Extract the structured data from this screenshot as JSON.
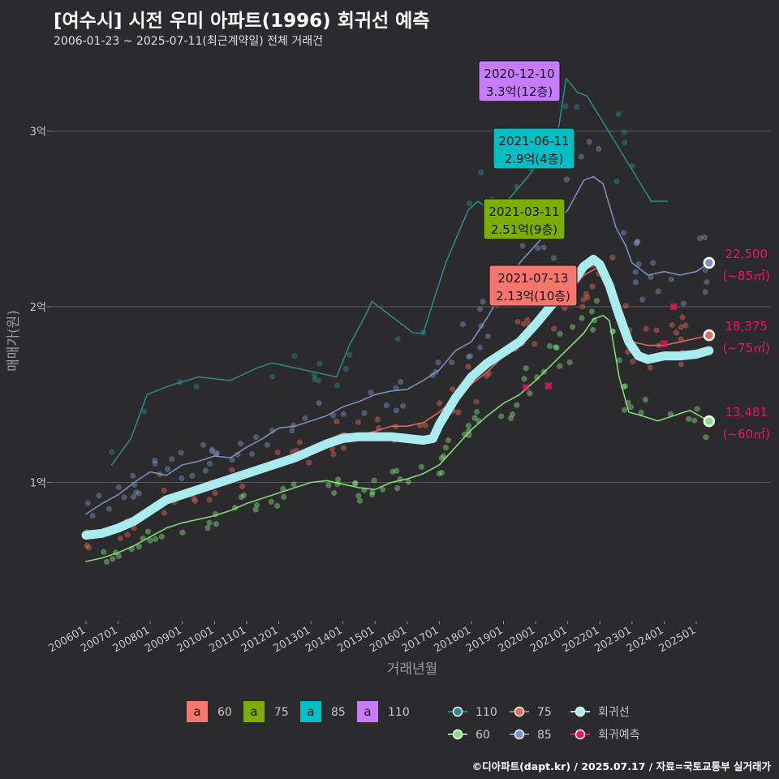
{
  "header": {
    "title": "[여수시] 시전 우미 아파트(1996) 회귀선 예측",
    "subtitle": "2006-01-23 ~ 2025-07-11(최근계약일) 전체 거래건"
  },
  "footer": "©디아파트(dapt.kr) / 2025.07.17 / 자료=국토교통부 실거래가",
  "colors": {
    "background": "#2b2b2d",
    "size_110": "#2a8c8c",
    "size_85": "#7f93c2",
    "size_75": "#e8675f",
    "size_60": "#86e37c",
    "regression": "#a9ecf0",
    "prediction": "#e8185f",
    "label_60": "#f8766d",
    "label_75": "#7cae00",
    "label_85": "#00bfc4",
    "label_110": "#c77cff"
  },
  "chart_data": {
    "type": "line",
    "xlabel": "거래년월",
    "ylabel": "매매가(원)",
    "x_ticks": [
      "200601",
      "200701",
      "200801",
      "200901",
      "201001",
      "201101",
      "201201",
      "201301",
      "201401",
      "201501",
      "201601",
      "201701",
      "201801",
      "201901",
      "202001",
      "202101",
      "202201",
      "202301",
      "202401",
      "202501"
    ],
    "y_ticks": [
      {
        "value": 10000,
        "label": "1억"
      },
      {
        "value": 20000,
        "label": "2억"
      },
      {
        "value": 30000,
        "label": "3억"
      }
    ],
    "ylim": [
      7500,
      32500
    ],
    "grid": true,
    "series": [
      {
        "name": "110",
        "color_key": "size_110",
        "points": [
          [
            2006.8,
            11000
          ],
          [
            2007.4,
            12500
          ],
          [
            2007.9,
            15000
          ],
          [
            2008.6,
            15500
          ],
          [
            2009.5,
            16000
          ],
          [
            2010.5,
            15800
          ],
          [
            2011.3,
            16500
          ],
          [
            2011.8,
            16800
          ],
          [
            2013.8,
            16000
          ],
          [
            2014.2,
            17800
          ],
          [
            2014.7,
            19500
          ],
          [
            2014.9,
            20300
          ],
          [
            2016.2,
            18500
          ],
          [
            2016.5,
            18500
          ],
          [
            2017.2,
            22500
          ],
          [
            2017.9,
            25500
          ],
          [
            2018.2,
            26000
          ],
          [
            2018.6,
            25500
          ],
          [
            2019.2,
            26200
          ],
          [
            2019.8,
            27500
          ],
          [
            2020.2,
            28500
          ],
          [
            2020.7,
            30000
          ],
          [
            2020.95,
            33000
          ],
          [
            2021.3,
            32200
          ],
          [
            2021.6,
            32000
          ],
          [
            2023.6,
            26000
          ],
          [
            2024.1,
            26000
          ]
        ]
      },
      {
        "name": "85",
        "color_key": "size_85",
        "points": [
          [
            2006.0,
            8200
          ],
          [
            2006.5,
            8800
          ],
          [
            2007.0,
            9300
          ],
          [
            2007.5,
            10000
          ],
          [
            2008.0,
            10600
          ],
          [
            2008.5,
            10400
          ],
          [
            2009.0,
            11000
          ],
          [
            2009.5,
            11200
          ],
          [
            2010.0,
            11500
          ],
          [
            2010.5,
            11400
          ],
          [
            2011.0,
            12000
          ],
          [
            2011.5,
            12500
          ],
          [
            2012.0,
            13100
          ],
          [
            2012.5,
            13200
          ],
          [
            2013.0,
            13500
          ],
          [
            2013.5,
            13800
          ],
          [
            2014.0,
            14300
          ],
          [
            2014.5,
            14600
          ],
          [
            2015.0,
            15000
          ],
          [
            2015.5,
            15200
          ],
          [
            2016.0,
            15300
          ],
          [
            2016.5,
            15800
          ],
          [
            2017.0,
            16400
          ],
          [
            2017.5,
            17500
          ],
          [
            2018.0,
            18000
          ],
          [
            2018.5,
            19400
          ],
          [
            2019.0,
            21000
          ],
          [
            2019.5,
            22500
          ],
          [
            2020.0,
            23500
          ],
          [
            2020.5,
            24500
          ],
          [
            2021.0,
            25500
          ],
          [
            2021.5,
            27200
          ],
          [
            2021.8,
            27400
          ],
          [
            2022.1,
            27000
          ],
          [
            2022.5,
            24500
          ],
          [
            2022.8,
            23500
          ],
          [
            2023.0,
            22500
          ],
          [
            2023.5,
            21800
          ],
          [
            2024.0,
            22000
          ],
          [
            2024.5,
            21800
          ],
          [
            2025.0,
            22000
          ],
          [
            2025.4,
            22500
          ]
        ]
      },
      {
        "name": "75",
        "color_key": "size_75",
        "points": [
          [
            2006.0,
            6800
          ],
          [
            2006.5,
            7000
          ],
          [
            2007.0,
            7300
          ],
          [
            2007.5,
            7700
          ],
          [
            2008.0,
            8300
          ],
          [
            2008.5,
            9000
          ],
          [
            2009.0,
            9300
          ],
          [
            2009.5,
            9600
          ],
          [
            2010.0,
            9800
          ],
          [
            2010.5,
            10000
          ],
          [
            2011.0,
            10300
          ],
          [
            2011.5,
            10600
          ],
          [
            2012.0,
            11000
          ],
          [
            2012.5,
            11400
          ],
          [
            2013.0,
            12000
          ],
          [
            2013.5,
            12400
          ],
          [
            2014.0,
            12800
          ],
          [
            2014.5,
            12700
          ],
          [
            2015.0,
            12900
          ],
          [
            2015.5,
            13200
          ],
          [
            2016.0,
            13200
          ],
          [
            2016.5,
            13400
          ],
          [
            2017.0,
            14000
          ],
          [
            2017.5,
            14800
          ],
          [
            2018.0,
            15600
          ],
          [
            2018.5,
            16300
          ],
          [
            2019.0,
            17200
          ],
          [
            2019.5,
            18100
          ],
          [
            2020.0,
            19000
          ],
          [
            2020.5,
            19800
          ],
          [
            2021.0,
            20700
          ],
          [
            2021.5,
            21800
          ],
          [
            2021.9,
            22200
          ],
          [
            2022.2,
            22000
          ],
          [
            2022.5,
            20700
          ],
          [
            2022.8,
            19200
          ],
          [
            2023.0,
            18000
          ],
          [
            2023.5,
            17800
          ],
          [
            2024.0,
            17800
          ],
          [
            2024.5,
            18000
          ],
          [
            2025.0,
            18200
          ],
          [
            2025.4,
            18375
          ]
        ]
      },
      {
        "name": "60",
        "color_key": "size_60",
        "points": [
          [
            2006.0,
            5500
          ],
          [
            2006.5,
            5700
          ],
          [
            2007.0,
            6000
          ],
          [
            2007.5,
            6400
          ],
          [
            2008.0,
            6900
          ],
          [
            2008.5,
            7400
          ],
          [
            2009.0,
            7700
          ],
          [
            2009.5,
            7900
          ],
          [
            2010.0,
            8100
          ],
          [
            2010.5,
            8400
          ],
          [
            2011.0,
            8800
          ],
          [
            2011.5,
            9100
          ],
          [
            2012.0,
            9400
          ],
          [
            2012.5,
            9700
          ],
          [
            2013.0,
            10000
          ],
          [
            2013.5,
            10100
          ],
          [
            2014.0,
            9900
          ],
          [
            2014.5,
            9700
          ],
          [
            2015.0,
            9600
          ],
          [
            2015.5,
            10000
          ],
          [
            2016.0,
            10200
          ],
          [
            2016.5,
            10500
          ],
          [
            2017.0,
            11000
          ],
          [
            2017.5,
            12000
          ],
          [
            2018.0,
            13000
          ],
          [
            2018.5,
            13800
          ],
          [
            2019.0,
            14500
          ],
          [
            2019.5,
            15000
          ],
          [
            2020.0,
            15800
          ],
          [
            2020.5,
            16700
          ],
          [
            2021.0,
            17600
          ],
          [
            2021.5,
            18500
          ],
          [
            2021.8,
            19300
          ],
          [
            2022.1,
            19500
          ],
          [
            2022.3,
            19200
          ],
          [
            2022.6,
            16000
          ],
          [
            2022.9,
            14000
          ],
          [
            2023.3,
            13800
          ],
          [
            2023.8,
            13500
          ],
          [
            2024.3,
            13800
          ],
          [
            2024.8,
            14100
          ],
          [
            2025.4,
            13481
          ]
        ]
      },
      {
        "name": "회귀선",
        "color_key": "regression",
        "points": [
          [
            2006.0,
            7000
          ],
          [
            2006.5,
            7100
          ],
          [
            2007.0,
            7400
          ],
          [
            2007.5,
            7800
          ],
          [
            2008.0,
            8400
          ],
          [
            2008.5,
            9000
          ],
          [
            2009.0,
            9300
          ],
          [
            2009.5,
            9600
          ],
          [
            2010.0,
            9900
          ],
          [
            2010.5,
            10200
          ],
          [
            2011.0,
            10500
          ],
          [
            2011.5,
            10800
          ],
          [
            2012.0,
            11100
          ],
          [
            2012.5,
            11400
          ],
          [
            2013.0,
            11800
          ],
          [
            2013.5,
            12200
          ],
          [
            2014.0,
            12500
          ],
          [
            2014.5,
            12600
          ],
          [
            2015.0,
            12600
          ],
          [
            2015.5,
            12600
          ],
          [
            2016.0,
            12500
          ],
          [
            2016.5,
            12400
          ],
          [
            2016.8,
            12500
          ],
          [
            2017.0,
            13300
          ],
          [
            2017.5,
            14800
          ],
          [
            2018.0,
            16000
          ],
          [
            2018.5,
            16800
          ],
          [
            2019.0,
            17400
          ],
          [
            2019.5,
            18000
          ],
          [
            2020.0,
            19000
          ],
          [
            2020.5,
            20100
          ],
          [
            2021.0,
            21000
          ],
          [
            2021.5,
            22300
          ],
          [
            2021.8,
            22700
          ],
          [
            2022.0,
            22400
          ],
          [
            2022.3,
            21200
          ],
          [
            2022.6,
            19500
          ],
          [
            2022.9,
            18000
          ],
          [
            2023.2,
            17200
          ],
          [
            2023.5,
            17000
          ],
          [
            2024.0,
            17200
          ],
          [
            2024.5,
            17200
          ],
          [
            2025.0,
            17300
          ],
          [
            2025.4,
            17500
          ]
        ]
      }
    ],
    "scatter_note": "individual transactions shown as translucent dots per size group",
    "prediction_points": [
      [
        2024.3,
        20000
      ],
      [
        2024.0,
        17900
      ],
      [
        2020.4,
        15500
      ],
      [
        2019.7,
        15400
      ]
    ],
    "labels": [
      {
        "date": "2020-12-10",
        "price": "3.3억(12층)",
        "size": "110",
        "color_key": "label_110",
        "value": 33000
      },
      {
        "date": "2021-06-11",
        "price": "2.9억(4층)",
        "size": "85",
        "color_key": "label_85",
        "value": 29000
      },
      {
        "date": "2021-03-11",
        "price": "2.51억(9층)",
        "size": "75",
        "color_key": "label_75",
        "value": 25100
      },
      {
        "date": "2021-07-13",
        "price": "2.13억(10층)",
        "size": "60",
        "color_key": "label_60",
        "value": 21300
      }
    ],
    "end_labels": [
      {
        "value_text": "22,500",
        "area_text": "(~85㎡)",
        "value": 22500,
        "dot_color_key": "size_85"
      },
      {
        "value_text": "18,375",
        "area_text": "(~75㎡)",
        "value": 18375,
        "dot_color_key": "size_75"
      },
      {
        "value_text": "13,481",
        "area_text": "(~60㎡)",
        "value": 13481,
        "dot_color_key": "size_60"
      }
    ],
    "legend_labels": {
      "label_keys": [
        {
          "text": "60",
          "color_key": "label_60"
        },
        {
          "text": "75",
          "color_key": "label_75"
        },
        {
          "text": "85",
          "color_key": "label_85"
        },
        {
          "text": "110",
          "color_key": "label_110"
        }
      ],
      "line_keys": [
        {
          "text": "110",
          "color_key": "size_110"
        },
        {
          "text": "75",
          "color_key": "size_75"
        },
        {
          "text": "회귀선",
          "color_key": "regression"
        },
        {
          "text": "60",
          "color_key": "size_60"
        },
        {
          "text": "85",
          "color_key": "size_85"
        },
        {
          "text": "회귀예측",
          "color_key": "prediction"
        }
      ],
      "box_glyph": "a",
      "placement": "bottom"
    }
  }
}
